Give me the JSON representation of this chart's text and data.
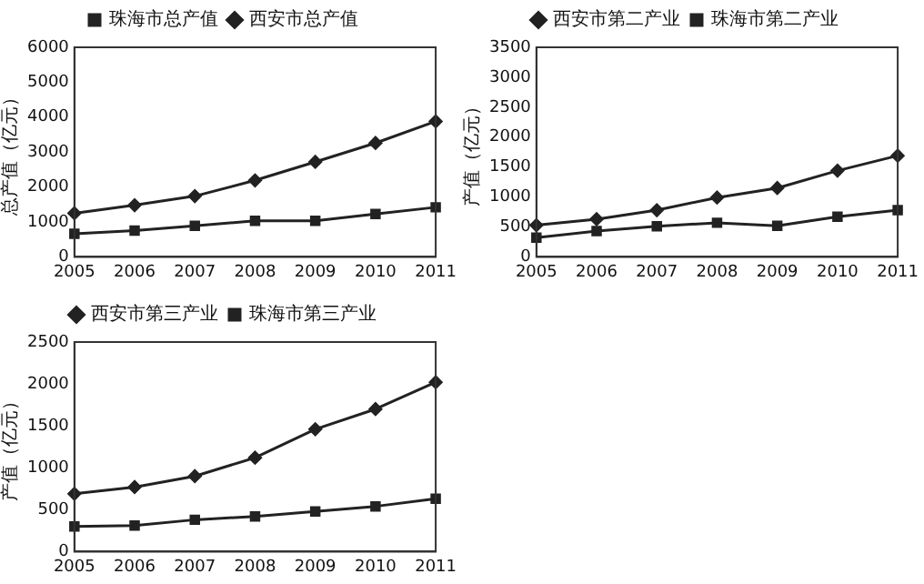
{
  "chart_data": [
    {
      "type": "line",
      "ylabel": "总产值（亿元）",
      "categories": [
        "2005",
        "2006",
        "2007",
        "2008",
        "2009",
        "2010",
        "2011"
      ],
      "series": [
        {
          "name": "珠海市总产值",
          "color": "#222222",
          "marker": "square",
          "values": [
            660,
            750,
            890,
            1030,
            1030,
            1230,
            1420
          ]
        },
        {
          "name": "西安市总产值",
          "color": "#222222",
          "marker": "diamond",
          "values": [
            1250,
            1480,
            1740,
            2190,
            2720,
            3260,
            3880
          ]
        }
      ],
      "ylim": [
        0,
        6000
      ],
      "yticks": [
        0,
        1000,
        2000,
        3000,
        4000,
        5000,
        6000
      ],
      "grid": false,
      "legend": "top",
      "line_style": "solid"
    },
    {
      "type": "line",
      "ylabel": "产值（亿元）",
      "categories": [
        "2005",
        "2006",
        "2007",
        "2008",
        "2009",
        "2010",
        "2011"
      ],
      "series": [
        {
          "name": "西安市第二产业",
          "color": "#222222",
          "marker": "diamond",
          "values": [
            530,
            630,
            780,
            990,
            1150,
            1440,
            1690
          ]
        },
        {
          "name": "珠海市第二产业",
          "color": "#222222",
          "marker": "square",
          "values": [
            320,
            430,
            510,
            570,
            520,
            670,
            780
          ]
        }
      ],
      "ylim": [
        0,
        3500
      ],
      "yticks": [
        0,
        500,
        1000,
        1500,
        2000,
        2500,
        3000,
        3500
      ],
      "grid": false,
      "legend": "top",
      "line_style": "solid"
    },
    {
      "type": "line",
      "ylabel": "产值（亿元）",
      "categories": [
        "2005",
        "2006",
        "2007",
        "2008",
        "2009",
        "2010",
        "2011"
      ],
      "series": [
        {
          "name": "西安市第三产业",
          "color": "#222222",
          "marker": "diamond",
          "values": [
            690,
            770,
            900,
            1120,
            1460,
            1700,
            2020
          ]
        },
        {
          "name": "珠海市第三产业",
          "color": "#222222",
          "marker": "square",
          "values": [
            300,
            310,
            380,
            420,
            480,
            540,
            630
          ]
        }
      ],
      "ylim": [
        0,
        2500
      ],
      "yticks": [
        0,
        500,
        1000,
        1500,
        2000,
        2500
      ],
      "grid": false,
      "legend": "top",
      "line_style": "solid"
    }
  ]
}
